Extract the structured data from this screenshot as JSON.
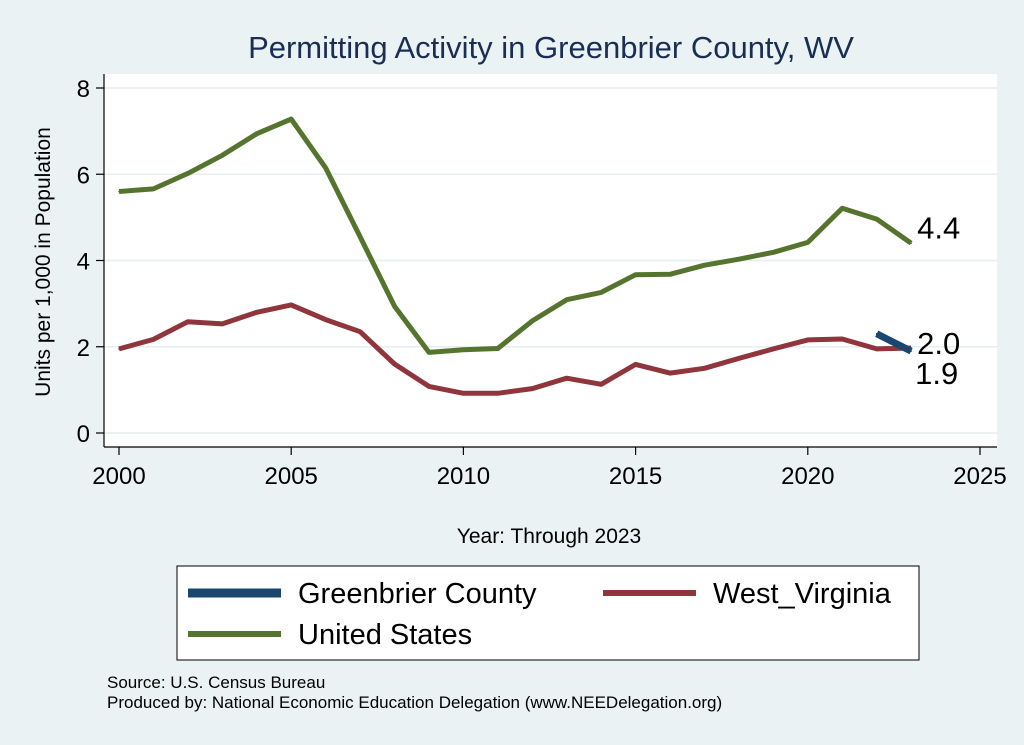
{
  "chart_data": {
    "type": "line",
    "title": "Permitting Activity in Greenbrier County, WV",
    "xlabel": "Year: Through 2023",
    "ylabel": "Units per 1,000 in Population",
    "xlim": [
      2000,
      2025
    ],
    "ylim": [
      0,
      8
    ],
    "x_ticks": [
      "2000",
      "2005",
      "2010",
      "2015",
      "2020",
      "2025"
    ],
    "y_ticks": [
      "0",
      "2",
      "4",
      "6",
      "8"
    ],
    "grid": true,
    "legend_position": "bottom",
    "series": [
      {
        "name": "Greenbrier County",
        "color": "#1a476f",
        "x": [
          2022,
          2023
        ],
        "y": [
          2.3,
          1.9
        ]
      },
      {
        "name": "West_Virginia",
        "color": "#90353b",
        "x": [
          2000,
          2001,
          2002,
          2003,
          2004,
          2005,
          2006,
          2007,
          2008,
          2009,
          2010,
          2011,
          2012,
          2013,
          2014,
          2015,
          2016,
          2017,
          2018,
          2019,
          2020,
          2021,
          2022,
          2023
        ],
        "y": [
          1.95,
          2.17,
          2.58,
          2.53,
          2.8,
          2.97,
          2.63,
          2.35,
          1.6,
          1.08,
          0.92,
          0.92,
          1.03,
          1.27,
          1.13,
          1.59,
          1.39,
          1.5,
          1.73,
          1.95,
          2.16,
          2.18,
          1.95,
          1.97
        ]
      },
      {
        "name": "United States",
        "color": "#55752f",
        "x": [
          2000,
          2001,
          2002,
          2003,
          2004,
          2005,
          2006,
          2007,
          2008,
          2009,
          2010,
          2011,
          2012,
          2013,
          2014,
          2015,
          2016,
          2017,
          2018,
          2019,
          2020,
          2021,
          2022,
          2023
        ],
        "y": [
          5.6,
          5.66,
          6.02,
          6.44,
          6.94,
          7.28,
          6.15,
          4.55,
          2.94,
          1.87,
          1.93,
          1.96,
          2.6,
          3.09,
          3.26,
          3.67,
          3.68,
          3.89,
          4.03,
          4.19,
          4.42,
          5.21,
          4.96,
          4.4
        ]
      }
    ],
    "end_labels": [
      {
        "series": "United States",
        "text": "4.4"
      },
      {
        "series": "West_Virginia",
        "text": "2.0"
      },
      {
        "series": "Greenbrier County",
        "text": "1.9"
      }
    ],
    "legend_order": [
      "Greenbrier County",
      "West_Virginia",
      "United States"
    ]
  },
  "footnotes": {
    "source": "Source: U.S. Census Bureau",
    "produced_by": "Produced by: National Economic Education Delegation (www.NEEDelegation.org)"
  }
}
